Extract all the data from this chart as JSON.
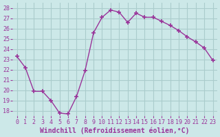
{
  "x": [
    0,
    1,
    2,
    3,
    4,
    5,
    6,
    7,
    8,
    9,
    10,
    11,
    12,
    13,
    14,
    15,
    16,
    17,
    18,
    19,
    20,
    21,
    22,
    23
  ],
  "y": [
    23.3,
    22.2,
    19.9,
    19.9,
    19.0,
    17.8,
    17.7,
    19.4,
    21.9,
    25.6,
    27.1,
    27.8,
    27.6,
    26.6,
    27.5,
    27.1,
    27.1,
    26.7,
    26.3,
    25.8,
    25.2,
    24.7,
    24.1,
    22.9
  ],
  "line_color": "#993399",
  "bg_color": "#cce8e8",
  "grid_color": "#aacccc",
  "xlabel": "Windchill (Refroidissement éolien,°C)",
  "xlabel_color": "#993399",
  "ylim": [
    17.5,
    28.5
  ],
  "yticks": [
    18,
    19,
    20,
    21,
    22,
    23,
    24,
    25,
    26,
    27,
    28
  ],
  "xticks": [
    0,
    1,
    2,
    3,
    4,
    5,
    6,
    7,
    8,
    9,
    10,
    11,
    12,
    13,
    14,
    15,
    16,
    17,
    18,
    19,
    20,
    21,
    22,
    23
  ],
  "tick_fontsize": 6.0,
  "xlabel_fontsize": 7.0,
  "tick_color": "#993399"
}
